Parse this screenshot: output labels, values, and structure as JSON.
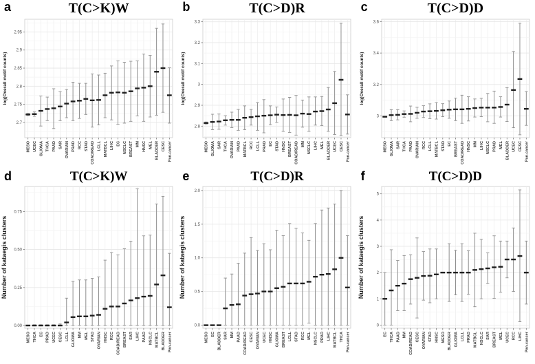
{
  "colors": {
    "background": "#ffffff",
    "panel_border": "#d4d4d4",
    "grid_major": "#e7e7e7",
    "grid_minor": "#f3f3f3",
    "grid_vertical": "#ececec",
    "error_bar": "#8f8f8f",
    "center_mark": "#1f1f1f",
    "axis_tick_text": "#4d4d4d",
    "x_label_text": "#3a3a3a",
    "axis_title_text": "#222222"
  },
  "chart_data": [
    {
      "type": "errorbar",
      "panel_letter": "a",
      "title": "T(C>K)W",
      "xlabel": "",
      "ylabel": "log(Overall motif counts)",
      "ylim": [
        2.658,
        2.985
      ],
      "ytick_values": [
        2.7,
        2.75,
        2.8,
        2.85,
        2.9,
        2.95
      ],
      "ytick_labels": [
        "2.7",
        "2.75",
        "2.8",
        "2.85",
        "2.9",
        "2.95"
      ],
      "categories": [
        "MESO",
        "UCEC",
        "GLIOMA",
        "THCA",
        "PAAD",
        "SAR",
        "OVARIAN",
        "PRAD",
        "RCC",
        "STAD",
        "COAD/READ",
        "LCLL",
        "MATBCL",
        "LIHC",
        "EC",
        "NSCLC",
        "BREAST",
        "MM",
        "HNSC",
        "MEL",
        "BLADDER",
        "CESC",
        "Pan-cancer"
      ],
      "center": [
        2.722,
        2.723,
        2.732,
        2.737,
        2.739,
        2.744,
        2.752,
        2.758,
        2.76,
        2.765,
        2.761,
        2.762,
        2.775,
        2.782,
        2.783,
        2.782,
        2.786,
        2.794,
        2.796,
        2.8,
        2.84,
        2.85,
        2.775
      ],
      "low": [
        2.719,
        2.717,
        2.69,
        2.705,
        2.683,
        2.705,
        2.713,
        2.705,
        2.711,
        2.722,
        2.687,
        2.693,
        2.713,
        2.707,
        2.695,
        2.698,
        2.703,
        2.718,
        2.703,
        2.715,
        2.72,
        2.728,
        2.698
      ],
      "high": [
        2.725,
        2.729,
        2.773,
        2.77,
        2.793,
        2.785,
        2.791,
        2.811,
        2.808,
        2.808,
        2.834,
        2.831,
        2.836,
        2.856,
        2.87,
        2.866,
        2.869,
        2.87,
        2.889,
        2.885,
        2.96,
        2.972,
        2.851
      ]
    },
    {
      "type": "errorbar",
      "panel_letter": "b",
      "title": "T(C>D)R",
      "xlabel": "",
      "ylabel": "log(Overall motif counts)",
      "ylim": [
        2.745,
        3.312
      ],
      "ytick_values": [
        2.8,
        2.9,
        3.0,
        3.1,
        3.2,
        3.3
      ],
      "ytick_labels": [
        "2.8",
        "2.9",
        "3",
        "3.1",
        "3.2",
        "3.3"
      ],
      "categories": [
        "MESO",
        "GLIOMA",
        "SAR",
        "THCA",
        "OVARIAN",
        "PAAD",
        "MATBCL",
        "RCC",
        "LCLL",
        "PRAD",
        "EC",
        "STAD",
        "HNSC",
        "BREAST",
        "COAD/READ",
        "MM",
        "NSCLC",
        "LIHC",
        "MEL",
        "BLADDER",
        "UCEC",
        "CESC",
        "Pan-cancer"
      ],
      "center": [
        2.815,
        2.82,
        2.822,
        2.828,
        2.83,
        2.83,
        2.84,
        2.843,
        2.847,
        2.85,
        2.852,
        2.855,
        2.853,
        2.854,
        2.852,
        2.86,
        2.858,
        2.87,
        2.872,
        2.88,
        2.91,
        3.022,
        2.856
      ],
      "low": [
        2.81,
        2.783,
        2.785,
        2.805,
        2.793,
        2.78,
        2.783,
        2.805,
        2.78,
        2.768,
        2.807,
        2.818,
        2.775,
        2.77,
        2.757,
        2.795,
        2.775,
        2.805,
        2.803,
        2.775,
        2.76,
        2.755,
        2.762
      ],
      "high": [
        2.82,
        2.857,
        2.858,
        2.85,
        2.867,
        2.88,
        2.897,
        2.88,
        2.913,
        2.927,
        2.897,
        2.892,
        2.93,
        2.938,
        2.947,
        2.925,
        2.94,
        2.94,
        2.942,
        2.985,
        3.062,
        3.293,
        2.95
      ]
    },
    {
      "type": "errorbar",
      "panel_letter": "c",
      "title": "T(C>D)D",
      "xlabel": "",
      "ylabel": "log(Overall motif counts)",
      "ylim": [
        2.862,
        3.615
      ],
      "ytick_values": [
        3.0,
        3.2,
        3.4,
        3.6
      ],
      "ytick_labels": [
        "3",
        "3.2",
        "3.4",
        "3.6"
      ],
      "categories": [
        "MESO",
        "GLIOMA",
        "SAR",
        "THCA",
        "PAAD",
        "OVARIAN",
        "RCC",
        "LCLL",
        "MATBCL",
        "STAD",
        "EC",
        "BREAST",
        "COAD/READ",
        "HNSC",
        "MM",
        "LIHC",
        "NSCLC",
        "PRAD",
        "MEL",
        "BLADDER",
        "UCEC",
        "CESC",
        "Pan-cancer"
      ],
      "center": [
        2.995,
        3.005,
        3.007,
        3.012,
        3.013,
        3.02,
        3.028,
        3.03,
        3.032,
        3.036,
        3.04,
        3.042,
        3.042,
        3.045,
        3.05,
        3.053,
        3.053,
        3.053,
        3.057,
        3.072,
        3.165,
        3.235,
        3.045
      ],
      "low": [
        2.992,
        2.97,
        2.975,
        2.992,
        2.963,
        2.985,
        2.99,
        2.983,
        2.98,
        2.995,
        2.985,
        2.97,
        2.953,
        2.968,
        2.993,
        2.995,
        2.963,
        2.953,
        2.993,
        2.965,
        2.925,
        2.88,
        2.94
      ],
      "high": [
        2.998,
        3.04,
        3.04,
        3.032,
        3.063,
        3.055,
        3.065,
        3.077,
        3.085,
        3.078,
        3.095,
        3.113,
        3.132,
        3.122,
        3.108,
        3.112,
        3.143,
        3.158,
        3.122,
        3.18,
        3.41,
        3.59,
        3.155
      ]
    },
    {
      "type": "errorbar",
      "panel_letter": "d",
      "title": "T(C>K)W",
      "xlabel": "",
      "ylabel": "Number of kataegis clusters",
      "ylim": [
        -0.018,
        0.915
      ],
      "ytick_values": [
        0.0,
        0.25,
        0.5,
        0.75
      ],
      "ytick_labels": [
        "0.00",
        "0.25",
        "0.50",
        "0.75"
      ],
      "categories": [
        "MESO",
        "THCA",
        "EC",
        "PRAD",
        "UCEC",
        "CESC",
        "LCLL",
        "GLIOMA",
        "MM",
        "MEL",
        "STAD",
        "OVARIAN",
        "HNSC",
        "RCC",
        "COAD/READ",
        "BREAST",
        "SAR",
        "LIHC",
        "PAAD",
        "NSCLC",
        "MATBCL",
        "BLADDER",
        "Pan-cancer"
      ],
      "center": [
        0,
        0,
        0,
        0,
        0,
        0,
        0.02,
        0.055,
        0.06,
        0.06,
        0.065,
        0.07,
        0.11,
        0.125,
        0.125,
        0.145,
        0.165,
        0.18,
        0.19,
        0.195,
        0.27,
        0.33,
        0.12
      ],
      "low": [
        0,
        0,
        0,
        0,
        0,
        0,
        0,
        0,
        0,
        0,
        0,
        0,
        0,
        0,
        0,
        0,
        0,
        0,
        0,
        0,
        0,
        0,
        0
      ],
      "high": [
        0,
        0.005,
        0.005,
        0.005,
        0.005,
        0.01,
        0.18,
        0.29,
        0.3,
        0.3,
        0.31,
        0.32,
        0.43,
        0.48,
        0.465,
        0.505,
        0.555,
        0.9,
        0.59,
        0.595,
        0.8,
        0.85,
        0.475
      ]
    },
    {
      "type": "errorbar",
      "panel_letter": "e",
      "title": "T(C>D)R",
      "xlabel": "",
      "ylabel": "Number of kataegis clusters",
      "ylim": [
        -0.045,
        2.06
      ],
      "ytick_values": [
        0.0,
        0.5,
        1.0,
        1.5,
        2.0
      ],
      "ytick_labels": [
        "0.0",
        "0.5",
        "1.0",
        "1.5",
        "2.0"
      ],
      "categories": [
        "MESO",
        "EC",
        "BLADDER",
        "SAR",
        "MM",
        "PAAD",
        "COAD/READ",
        "CESC",
        "OVARIAN",
        "UCEC",
        "HNSC",
        "GLIOMA",
        "BREAST",
        "LCLL",
        "STAD",
        "RCC",
        "MEL",
        "NSCLC",
        "PRAD",
        "LIHC",
        "MATBCL",
        "THCA",
        "Pan-cancer"
      ],
      "center": [
        0,
        0,
        0,
        0.25,
        0.3,
        0.31,
        0.44,
        0.46,
        0.47,
        0.5,
        0.5,
        0.55,
        0.57,
        0.62,
        0.62,
        0.62,
        0.645,
        0.72,
        0.75,
        0.76,
        0.83,
        1.0,
        0.56
      ],
      "low": [
        0,
        0,
        0,
        0,
        0,
        0,
        0,
        0,
        0,
        0,
        0,
        0,
        0,
        0,
        0,
        0,
        0.03,
        0,
        0,
        0,
        0,
        0,
        0
      ],
      "high": [
        0,
        0,
        0,
        0.7,
        0.76,
        0.92,
        1.07,
        1.3,
        1.11,
        1.21,
        1.12,
        1.41,
        1.33,
        1.51,
        1.44,
        1.37,
        1.26,
        1.51,
        1.71,
        1.74,
        1.8,
        2.0,
        1.33
      ]
    },
    {
      "type": "errorbar",
      "panel_letter": "f",
      "title": "T(C>D)D",
      "xlabel": "",
      "ylabel": "Number of kataegis clusters",
      "ylim": [
        -0.12,
        5.28
      ],
      "ytick_values": [
        0,
        1,
        2,
        3,
        4,
        5
      ],
      "ytick_labels": [
        "0",
        "1",
        "2",
        "3",
        "4",
        "5"
      ],
      "categories": [
        "EC",
        "THCA",
        "PAAD",
        "MM",
        "COAD/READ",
        "CESC",
        "OVARIAN",
        "STAD",
        "HNSC",
        "MESO",
        "BLADDER",
        "GLIOMA",
        "LCLL",
        "PRAD",
        "MATBCL",
        "NSCLC",
        "SAR",
        "BREAST",
        "MEL",
        "UCEC",
        "RCC",
        "LIHC",
        "Pan-cancer"
      ],
      "center": [
        1.0,
        1.32,
        1.5,
        1.58,
        1.75,
        1.8,
        1.87,
        1.88,
        1.93,
        2.0,
        2.0,
        2.0,
        2.0,
        2.0,
        2.1,
        2.13,
        2.16,
        2.2,
        2.22,
        2.5,
        2.5,
        2.63,
        2.0
      ],
      "low": [
        0,
        0,
        0.55,
        0.55,
        0.8,
        0.27,
        0.95,
        0.85,
        1.0,
        2.0,
        0.9,
        1.15,
        0.9,
        1.17,
        0.7,
        1.0,
        1.58,
        1.02,
        1.25,
        1.8,
        1.28,
        0.13,
        0.8
      ],
      "high": [
        2.0,
        2.87,
        2.46,
        2.65,
        2.68,
        3.32,
        2.8,
        2.9,
        2.9,
        2.0,
        3.1,
        2.85,
        3.1,
        2.83,
        3.5,
        3.27,
        2.75,
        3.4,
        3.2,
        3.2,
        3.7,
        5.15,
        3.2
      ]
    }
  ]
}
